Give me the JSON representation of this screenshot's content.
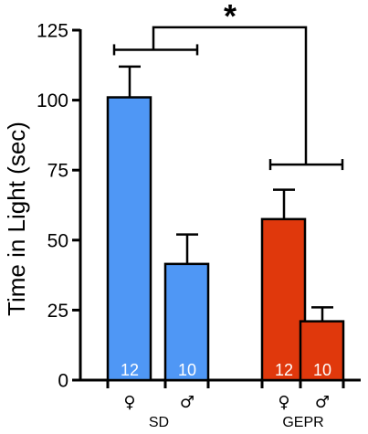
{
  "chart_data": {
    "type": "bar",
    "ylabel": "Time in Light (sec)",
    "ylim": [
      0,
      125
    ],
    "yticks": [
      0,
      25,
      50,
      75,
      100,
      125
    ],
    "groups": [
      "SD",
      "GEPR"
    ],
    "categories": [
      "♀",
      "♂",
      "♀",
      "♂"
    ],
    "category_group": [
      "SD",
      "SD",
      "GEPR",
      "GEPR"
    ],
    "values": [
      101,
      41.5,
      57.5,
      21
    ],
    "error_upper": [
      112,
      52,
      68,
      26
    ],
    "n_labels": [
      "12",
      "10",
      "12",
      "10"
    ],
    "bar_colors": [
      "#4f97f5",
      "#4f97f5",
      "#e0380c",
      "#e0380c"
    ],
    "significance": "*",
    "grid": false,
    "legend": "none"
  }
}
